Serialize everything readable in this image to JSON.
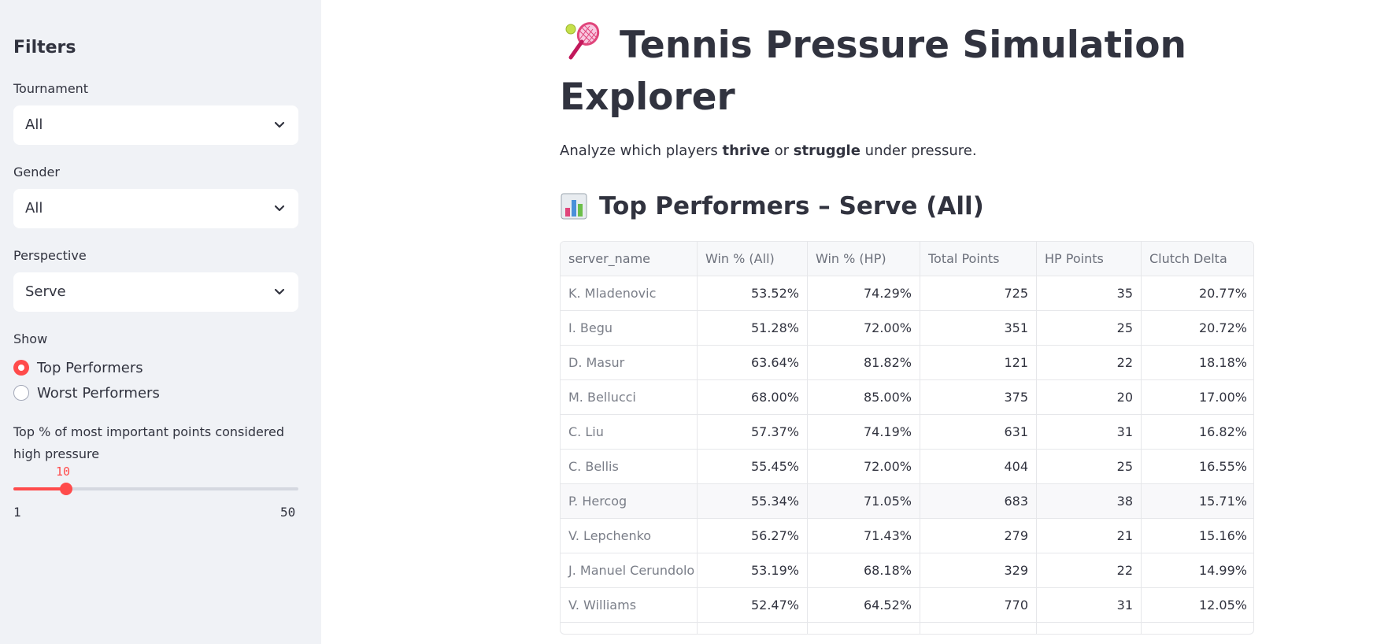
{
  "sidebar": {
    "title": "Filters",
    "tournament": {
      "label": "Tournament",
      "value": "All"
    },
    "gender": {
      "label": "Gender",
      "value": "All"
    },
    "perspective": {
      "label": "Perspective",
      "value": "Serve"
    },
    "show": {
      "label": "Show",
      "options": [
        "Top Performers",
        "Worst Performers"
      ],
      "selected": "Top Performers"
    },
    "slider": {
      "label": "Top % of most important points considered high pressure",
      "value": "10",
      "min": "1",
      "max": "50",
      "fraction": 0.184
    }
  },
  "main": {
    "title": "Tennis Pressure Simulation Explorer",
    "title_icon": "tennis-racket-icon",
    "subtitle": {
      "pre": "Analyze which players ",
      "bold1": "thrive",
      "mid": " or ",
      "bold2": "struggle",
      "post": " under pressure."
    },
    "section_title": "Top Performers – Serve (All)",
    "section_icon": "bar-chart-icon"
  },
  "table": {
    "columns": [
      "server_name",
      "Win % (All)",
      "Win % (HP)",
      "Total Points",
      "HP Points",
      "Clutch Delta"
    ],
    "rows": [
      [
        "K. Mladenovic",
        "53.52%",
        "74.29%",
        "725",
        "35",
        "20.77%"
      ],
      [
        "I. Begu",
        "51.28%",
        "72.00%",
        "351",
        "25",
        "20.72%"
      ],
      [
        "D. Masur",
        "63.64%",
        "81.82%",
        "121",
        "22",
        "18.18%"
      ],
      [
        "M. Bellucci",
        "68.00%",
        "85.00%",
        "375",
        "20",
        "17.00%"
      ],
      [
        "C. Liu",
        "57.37%",
        "74.19%",
        "631",
        "31",
        "16.82%"
      ],
      [
        "C. Bellis",
        "55.45%",
        "72.00%",
        "404",
        "25",
        "16.55%"
      ],
      [
        "P. Hercog",
        "55.34%",
        "71.05%",
        "683",
        "38",
        "15.71%"
      ],
      [
        "V. Lepchenko",
        "56.27%",
        "71.43%",
        "279",
        "21",
        "15.16%"
      ],
      [
        "J. Manuel Cerundolo",
        "53.19%",
        "68.18%",
        "329",
        "22",
        "14.99%"
      ],
      [
        "V. Williams",
        "52.47%",
        "64.52%",
        "770",
        "31",
        "12.05%"
      ]
    ]
  },
  "colors": {
    "accent": "#ff4b4b",
    "sidebar_bg": "#f0f2f6",
    "text": "#31333f"
  }
}
